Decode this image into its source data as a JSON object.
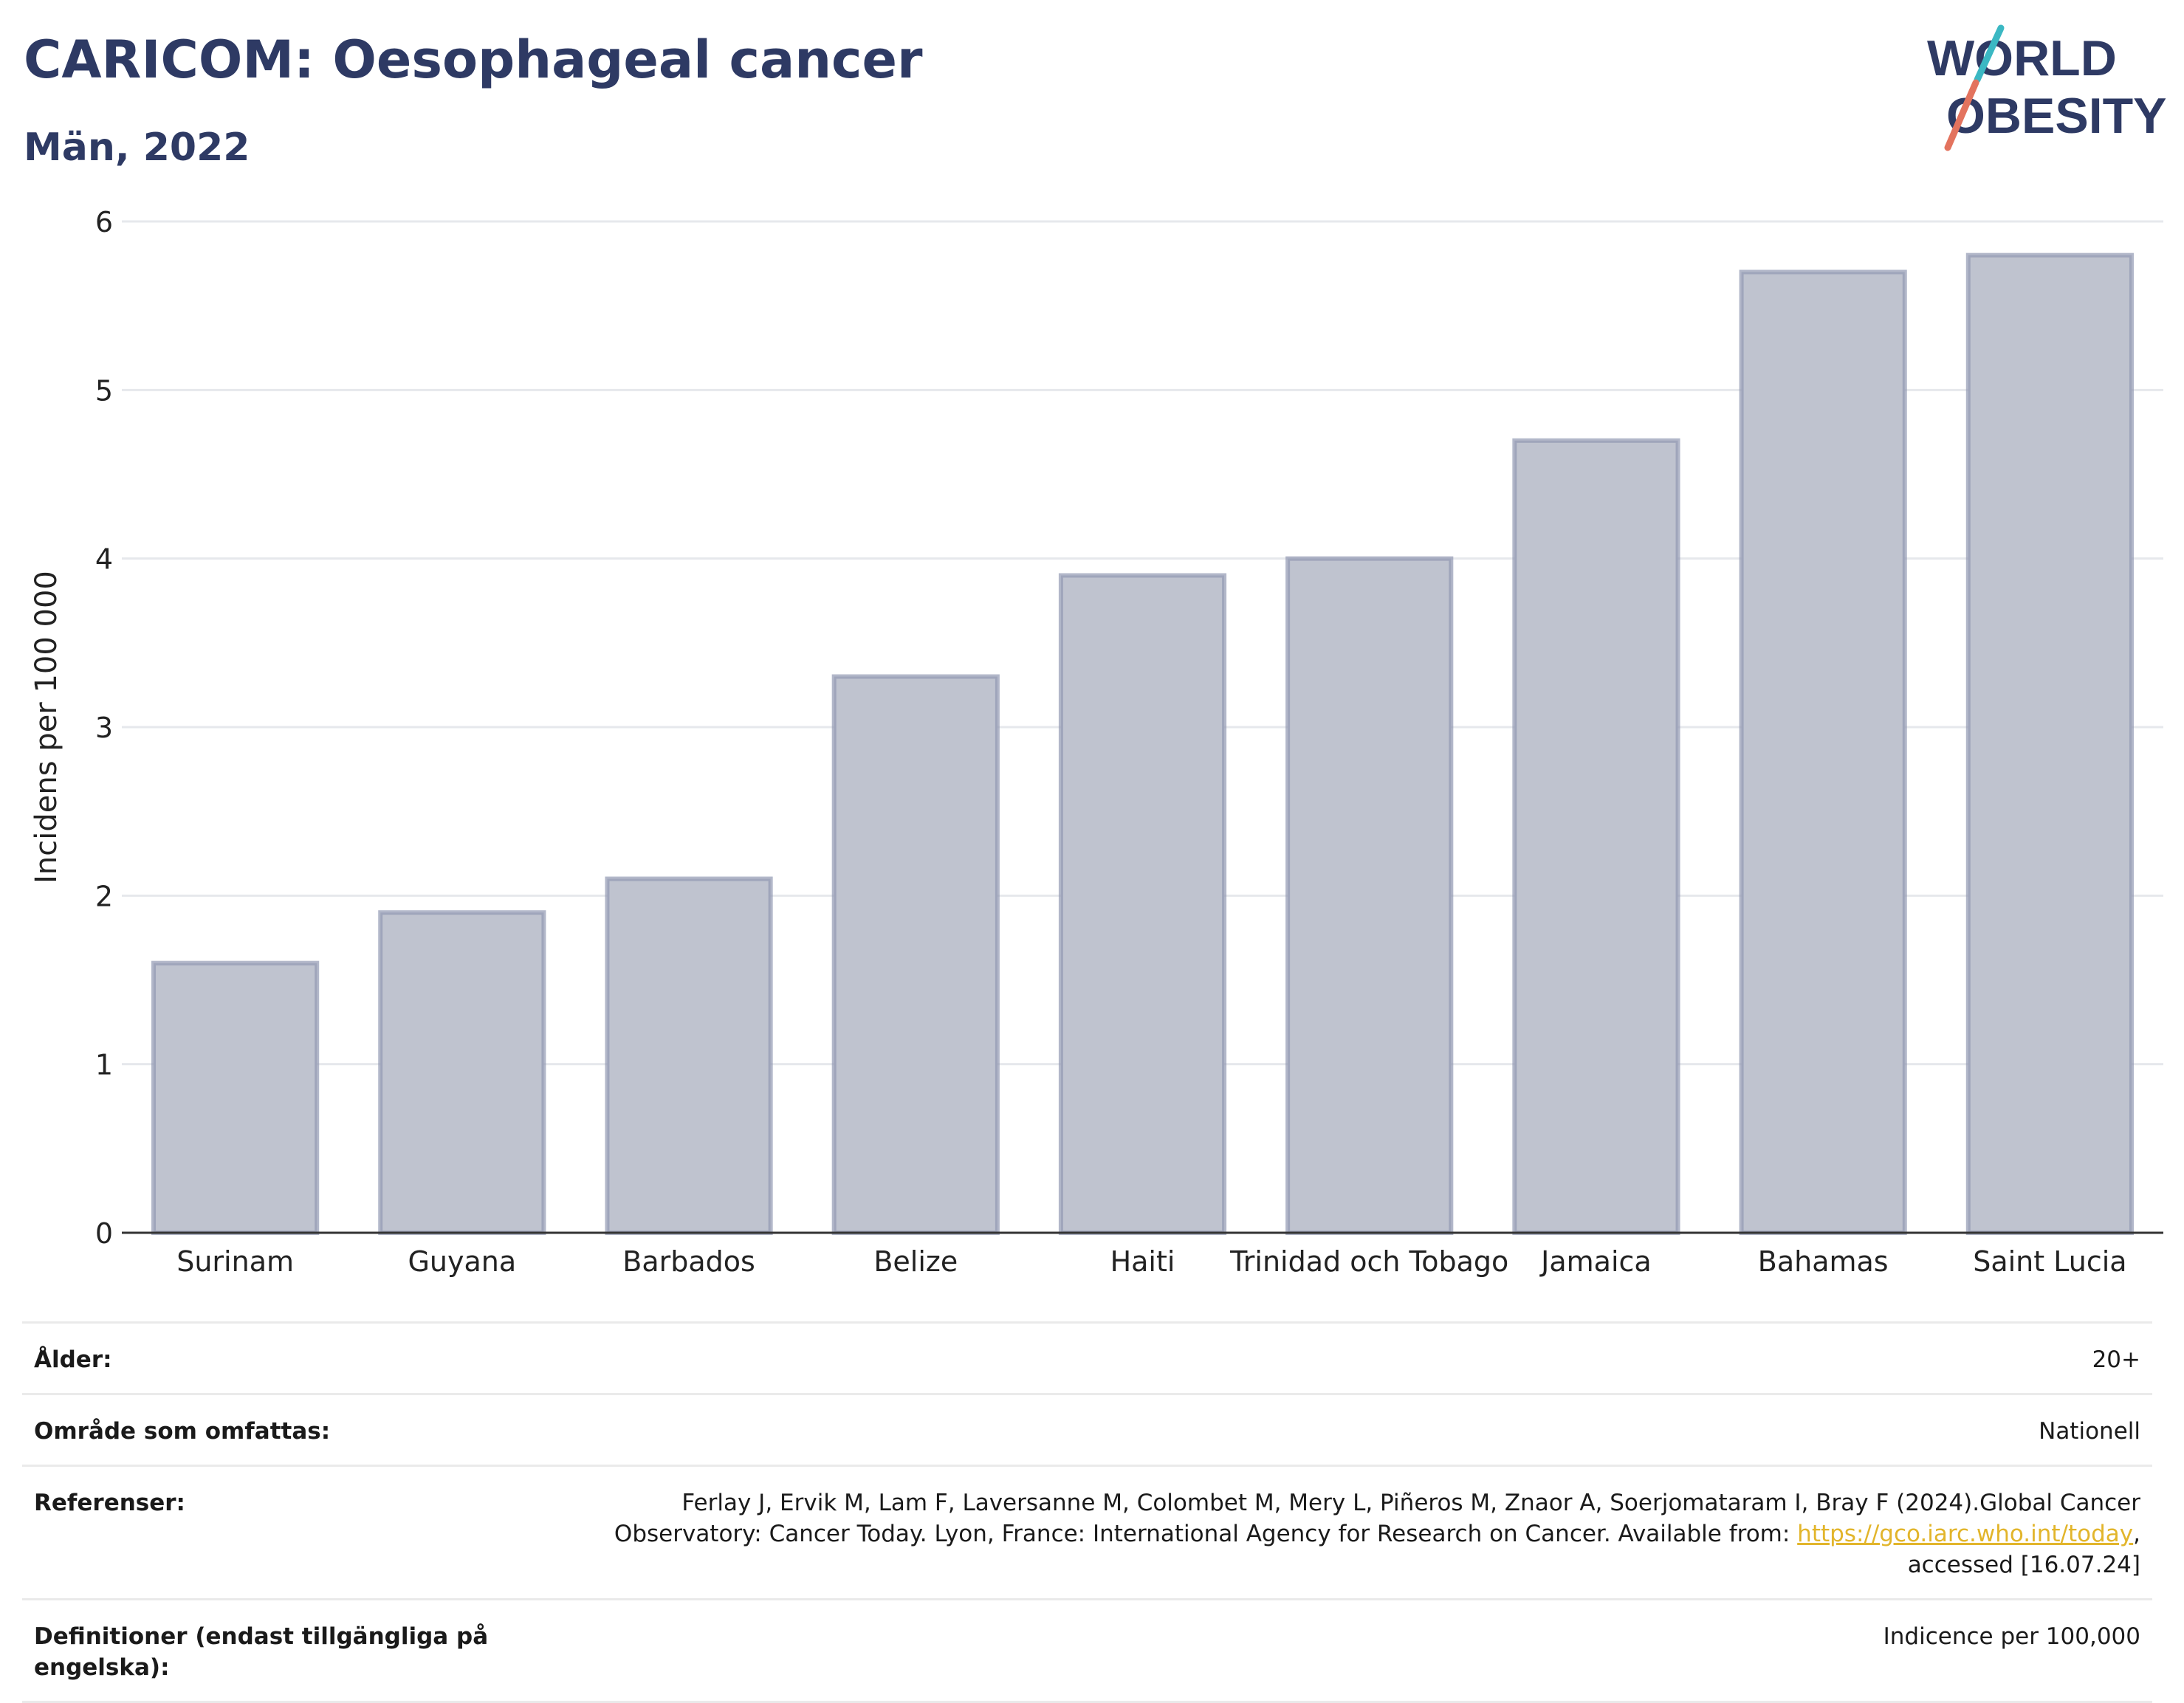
{
  "header": {
    "title": "CARICOM: Oesophageal cancer",
    "subtitle": "Män, 2022"
  },
  "logo": {
    "line1": "WORLD",
    "line2": "OBESITY",
    "colors": {
      "text": "#2e3a64",
      "accent_teal": "#3bb8c3",
      "accent_coral": "#e3735e"
    }
  },
  "chart_data": {
    "type": "bar",
    "title": "",
    "xlabel": "",
    "ylabel": "Incidens per 100 000",
    "categories": [
      "Surinam",
      "Guyana",
      "Barbados",
      "Belize",
      "Haiti",
      "Trinidad och Tobago",
      "Jamaica",
      "Bahamas",
      "Saint Lucia"
    ],
    "values": [
      1.6,
      1.9,
      2.1,
      3.3,
      3.9,
      4.0,
      4.7,
      5.7,
      5.8
    ],
    "ylim": [
      0,
      6
    ],
    "yticks": [
      0,
      1,
      2,
      3,
      4,
      5,
      6
    ],
    "grid": true,
    "legend": "none",
    "colors": {
      "bar_fill": "#bfc3cf",
      "bar_stroke": "#9298b2",
      "grid": "#e6e8ec",
      "axis": "#333333"
    }
  },
  "meta": {
    "rows": [
      {
        "label": "Ålder:",
        "value": "20+"
      },
      {
        "label": "Område som omfattas:",
        "value": "Nationell"
      },
      {
        "label": "Referenser:",
        "value_line1": "Ferlay J, Ervik M, Lam F, Laversanne M, Colombet M, Mery L, Piñeros M, Znaor A, Soerjomataram I, Bray F (2024).Global Cancer",
        "value_line2_prefix": "Observatory: Cancer Today. Lyon, France: International Agency for Research on Cancer. Available from: ",
        "link_text": "https://gco.iarc.who.int/today",
        "value_line2_suffix": ",",
        "value_line3": "accessed [16.07.24]"
      },
      {
        "label": "Definitioner (endast tillgängliga på engelska):",
        "value": "Indicence per 100,000"
      }
    ]
  }
}
